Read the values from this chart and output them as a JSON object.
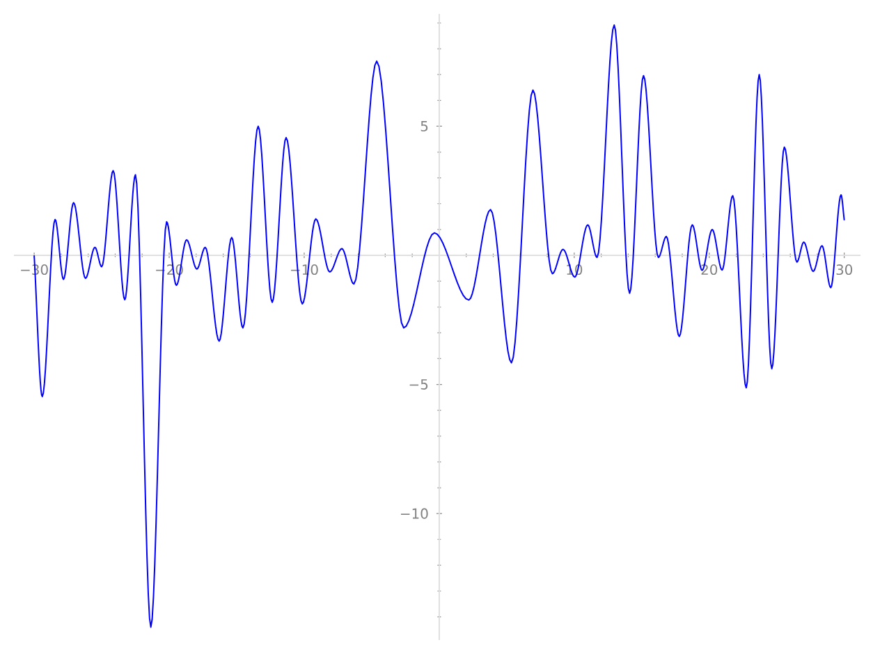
{
  "chart_data": {
    "type": "line",
    "x": [
      -30,
      -29.4,
      -28.45,
      -27.83,
      -27.08,
      -26.2,
      -25.5,
      -25.0,
      -24.15,
      -23.29,
      -22.5,
      -21.36,
      -20.19,
      -19.47,
      -18.71,
      -17.95,
      -17.33,
      -16.3,
      -15.37,
      -14.54,
      -13.41,
      -12.37,
      -11.34,
      -10.14,
      -9.14,
      -8.11,
      -7.21,
      -6.32,
      -4.63,
      -2.63,
      -0.36,
      2.19,
      3.8,
      5.35,
      6.94,
      8.38,
      9.17,
      10.04,
      11.0,
      11.69,
      12.96,
      14.1,
      15.13,
      16.23,
      16.82,
      17.78,
      18.74,
      19.47,
      20.22,
      20.95,
      21.74,
      22.74,
      23.7,
      24.63,
      25.56,
      26.49,
      27.0,
      27.7,
      28.35,
      29.0,
      29.76,
      30.0
    ],
    "series": [
      {
        "color": "#0000ff",
        "values": [
          0,
          -5.47,
          1.39,
          -0.93,
          2.04,
          -0.89,
          0.31,
          -0.44,
          3.28,
          -1.72,
          3.12,
          -14.4,
          1.3,
          -1.16,
          0.6,
          -0.53,
          0.31,
          -3.32,
          0.69,
          -2.81,
          5.0,
          -1.82,
          4.56,
          -1.88,
          1.41,
          -0.64,
          0.26,
          -1.11,
          7.52,
          -2.81,
          0.87,
          -1.73,
          1.77,
          -4.16,
          6.4,
          -0.71,
          0.23,
          -0.84,
          1.18,
          -0.08,
          8.92,
          -1.47,
          6.96,
          -0.08,
          0.73,
          -3.14,
          1.18,
          -0.58,
          1.0,
          -0.57,
          2.31,
          -5.13,
          7.0,
          -4.39,
          4.19,
          -0.26,
          0.51,
          -0.62,
          0.37,
          -1.25,
          2.34,
          1.36
        ]
      }
    ],
    "xlim": [
      -31.5,
      31.2
    ],
    "ylim": [
      -14.9,
      9.35
    ],
    "xticks": [
      {
        "value": -30,
        "label": "−30"
      },
      {
        "value": -28,
        "label": null
      },
      {
        "value": -26,
        "label": null
      },
      {
        "value": -24,
        "label": null
      },
      {
        "value": -22,
        "label": null
      },
      {
        "value": -20,
        "label": "−20"
      },
      {
        "value": -18,
        "label": null
      },
      {
        "value": -16,
        "label": null
      },
      {
        "value": -14,
        "label": null
      },
      {
        "value": -12,
        "label": null
      },
      {
        "value": -10,
        "label": "−10"
      },
      {
        "value": -8,
        "label": null
      },
      {
        "value": -6,
        "label": null
      },
      {
        "value": -4,
        "label": null
      },
      {
        "value": -2,
        "label": null
      },
      {
        "value": 2,
        "label": null
      },
      {
        "value": 4,
        "label": null
      },
      {
        "value": 6,
        "label": null
      },
      {
        "value": 8,
        "label": null
      },
      {
        "value": 10,
        "label": "10"
      },
      {
        "value": 12,
        "label": null
      },
      {
        "value": 14,
        "label": null
      },
      {
        "value": 16,
        "label": null
      },
      {
        "value": 18,
        "label": null
      },
      {
        "value": 20,
        "label": "20"
      },
      {
        "value": 22,
        "label": null
      },
      {
        "value": 24,
        "label": null
      },
      {
        "value": 26,
        "label": null
      },
      {
        "value": 28,
        "label": null
      },
      {
        "value": 30,
        "label": "30"
      }
    ],
    "yticks": [
      {
        "value": -14,
        "label": null
      },
      {
        "value": -13,
        "label": null
      },
      {
        "value": -12,
        "label": null
      },
      {
        "value": -11,
        "label": null
      },
      {
        "value": -10,
        "label": "−10"
      },
      {
        "value": -9,
        "label": null
      },
      {
        "value": -8,
        "label": null
      },
      {
        "value": -7,
        "label": null
      },
      {
        "value": -6,
        "label": null
      },
      {
        "value": -5,
        "label": "−5"
      },
      {
        "value": -4,
        "label": null
      },
      {
        "value": -3,
        "label": null
      },
      {
        "value": -2,
        "label": null
      },
      {
        "value": -1,
        "label": null
      },
      {
        "value": 1,
        "label": null
      },
      {
        "value": 2,
        "label": null
      },
      {
        "value": 3,
        "label": null
      },
      {
        "value": 4,
        "label": null
      },
      {
        "value": 5,
        "label": "5"
      },
      {
        "value": 6,
        "label": null
      },
      {
        "value": 7,
        "label": null
      },
      {
        "value": 8,
        "label": null
      },
      {
        "value": 9,
        "label": null
      }
    ]
  }
}
